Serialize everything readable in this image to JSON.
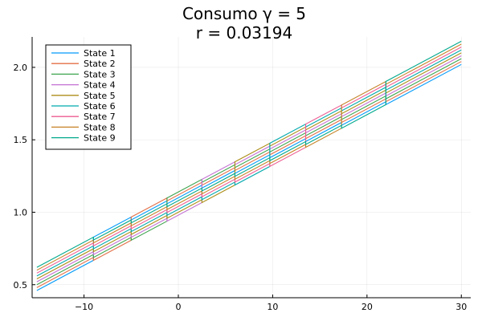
{
  "chart_data": {
    "type": "line",
    "title_lines": [
      "Consumo γ = 5",
      "r = 0.03194"
    ],
    "xlabel": "",
    "ylabel": "",
    "xlim": [
      -15.5,
      31.0
    ],
    "ylim": [
      0.41,
      2.21
    ],
    "x_ticks": [
      -10,
      0,
      10,
      20,
      30
    ],
    "y_ticks": [
      0.5,
      1.0,
      1.5,
      2.0
    ],
    "x_tick_labels": [
      "−10",
      "0",
      "10",
      "20",
      "30"
    ],
    "y_tick_labels": [
      "0.5",
      "1.0",
      "1.5",
      "2.0"
    ],
    "grid": true,
    "legend_position": "top-left",
    "x_range": [
      -15,
      30
    ],
    "jumps": [
      -9,
      -5,
      -1.2,
      2.5,
      6,
      9.7,
      13.5,
      17.3,
      22
    ],
    "series": [
      {
        "name": "State 1",
        "color": "#009AFA",
        "start": 0.46,
        "end": 2.02
      },
      {
        "name": "State 2",
        "color": "#E36F47",
        "start": 0.48,
        "end": 2.04
      },
      {
        "name": "State 3",
        "color": "#3EA44E",
        "start": 0.5,
        "end": 2.06
      },
      {
        "name": "State 4",
        "color": "#C371D2",
        "start": 0.52,
        "end": 2.08
      },
      {
        "name": "State 5",
        "color": "#AC8E18",
        "start": 0.54,
        "end": 2.1
      },
      {
        "name": "State 6",
        "color": "#00A9AD",
        "start": 0.56,
        "end": 2.12
      },
      {
        "name": "State 7",
        "color": "#ED5D92",
        "start": 0.58,
        "end": 2.14
      },
      {
        "name": "State 8",
        "color": "#C68225",
        "start": 0.6,
        "end": 2.16
      },
      {
        "name": "State 9",
        "color": "#00A98D",
        "start": 0.62,
        "end": 2.18
      }
    ]
  }
}
